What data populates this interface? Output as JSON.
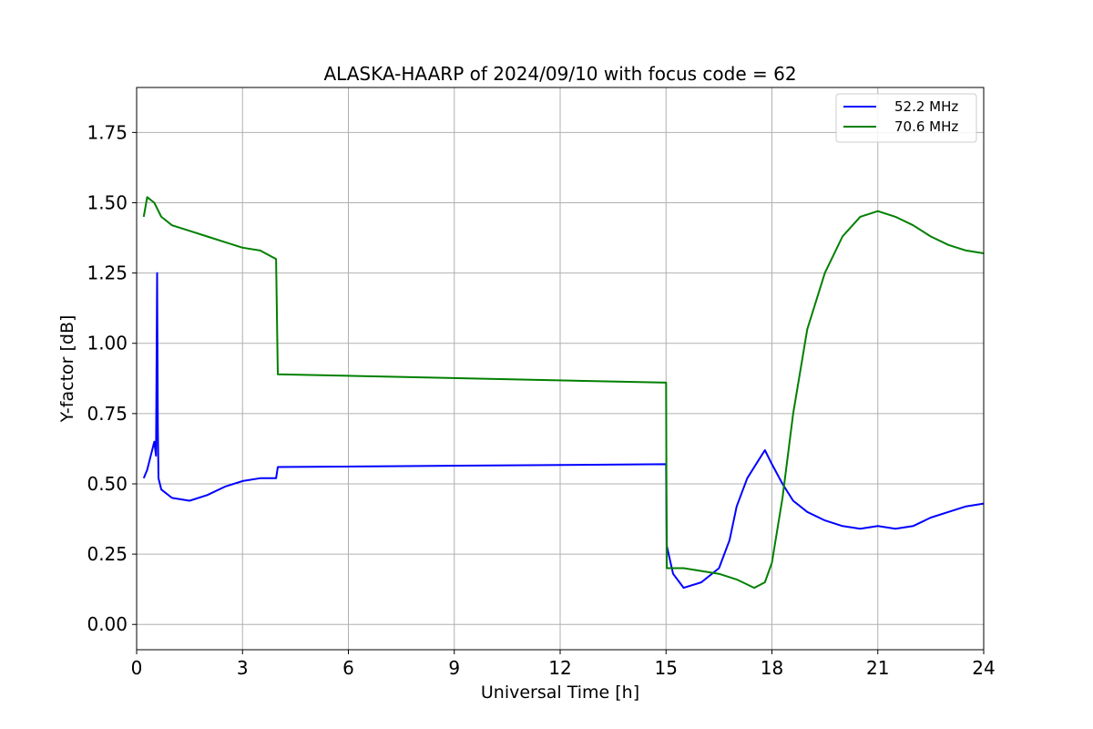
{
  "chart_data": {
    "type": "line",
    "title": "ALASKA-HAARP of 2024/09/10 with focus code = 62",
    "xlabel": "Universal Time [h]",
    "ylabel": "Y-factor [dB]",
    "xlim": [
      0,
      24
    ],
    "ylim": [
      -0.09,
      1.91
    ],
    "xticks": [
      0,
      3,
      6,
      9,
      12,
      15,
      18,
      21,
      24
    ],
    "xtick_labels": [
      "0",
      "3",
      "6",
      "9",
      "12",
      "15",
      "18",
      "21",
      "24"
    ],
    "yticks": [
      0.0,
      0.25,
      0.5,
      0.75,
      1.0,
      1.25,
      1.5,
      1.75
    ],
    "ytick_labels": [
      "0.00",
      "0.25",
      "0.50",
      "0.75",
      "1.00",
      "1.25",
      "1.50",
      "1.75"
    ],
    "grid": true,
    "legend_position": "top-right",
    "series": [
      {
        "name": "52.2 MHz",
        "color": "#0000ff",
        "x": [
          0.2,
          0.3,
          0.4,
          0.5,
          0.55,
          0.58,
          0.6,
          0.62,
          0.7,
          1.0,
          1.5,
          2.0,
          2.5,
          3.0,
          3.5,
          3.95,
          4.0,
          15.0,
          15.02,
          15.2,
          15.5,
          16.0,
          16.5,
          16.8,
          17.0,
          17.3,
          17.6,
          17.8,
          18.0,
          18.3,
          18.6,
          19.0,
          19.5,
          20.0,
          20.5,
          21.0,
          21.5,
          22.0,
          22.5,
          23.0,
          23.5,
          24.0
        ],
        "y": [
          0.52,
          0.55,
          0.6,
          0.65,
          0.6,
          1.25,
          0.7,
          0.52,
          0.48,
          0.45,
          0.44,
          0.46,
          0.49,
          0.51,
          0.52,
          0.52,
          0.56,
          0.57,
          0.28,
          0.18,
          0.13,
          0.15,
          0.2,
          0.3,
          0.42,
          0.52,
          0.58,
          0.62,
          0.57,
          0.5,
          0.44,
          0.4,
          0.37,
          0.35,
          0.34,
          0.35,
          0.34,
          0.35,
          0.38,
          0.4,
          0.42,
          0.43
        ]
      },
      {
        "name": "70.6 MHz",
        "color": "#008000",
        "x": [
          0.2,
          0.3,
          0.5,
          0.7,
          1.0,
          1.5,
          2.0,
          2.5,
          3.0,
          3.5,
          3.95,
          4.0,
          15.0,
          15.02,
          15.5,
          16.0,
          16.5,
          17.0,
          17.5,
          17.8,
          18.0,
          18.3,
          18.6,
          19.0,
          19.5,
          20.0,
          20.5,
          21.0,
          21.5,
          22.0,
          22.5,
          23.0,
          23.5,
          24.0
        ],
        "y": [
          1.45,
          1.52,
          1.5,
          1.45,
          1.42,
          1.4,
          1.38,
          1.36,
          1.34,
          1.33,
          1.3,
          0.89,
          0.86,
          0.2,
          0.2,
          0.19,
          0.18,
          0.16,
          0.13,
          0.15,
          0.22,
          0.45,
          0.75,
          1.05,
          1.25,
          1.38,
          1.45,
          1.47,
          1.45,
          1.42,
          1.38,
          1.35,
          1.33,
          1.32
        ]
      }
    ]
  }
}
